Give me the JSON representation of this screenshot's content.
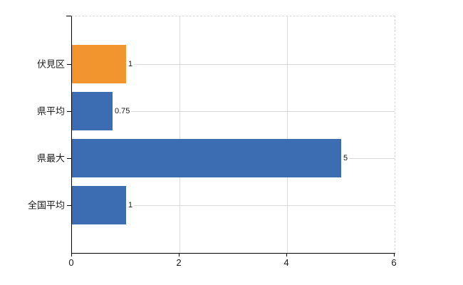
{
  "chart_data": {
    "type": "bar",
    "orientation": "horizontal",
    "title": "",
    "xlabel": "",
    "ylabel": "",
    "categories": [
      "伏見区",
      "県平均",
      "県最大",
      "全国平均"
    ],
    "values": [
      1,
      0.75,
      5,
      1
    ],
    "value_labels": [
      "1",
      "0.75",
      "5",
      "1"
    ],
    "bar_colors": [
      "#F2952F",
      "#3C6DB3",
      "#3C6DB3",
      "#3C6DB3"
    ],
    "xlim": [
      0,
      6
    ],
    "xticks": [
      0,
      2,
      4,
      6
    ],
    "xtick_labels": [
      "0",
      "2",
      "4",
      "6"
    ],
    "grid": true,
    "legend_position": "none"
  },
  "colors": {
    "accent_orange": "#F2952F",
    "accent_blue": "#3C6DB3",
    "grid": "#d9d9d9",
    "axis": "#000000",
    "text": "#1a1a1a",
    "background": "#ffffff"
  }
}
